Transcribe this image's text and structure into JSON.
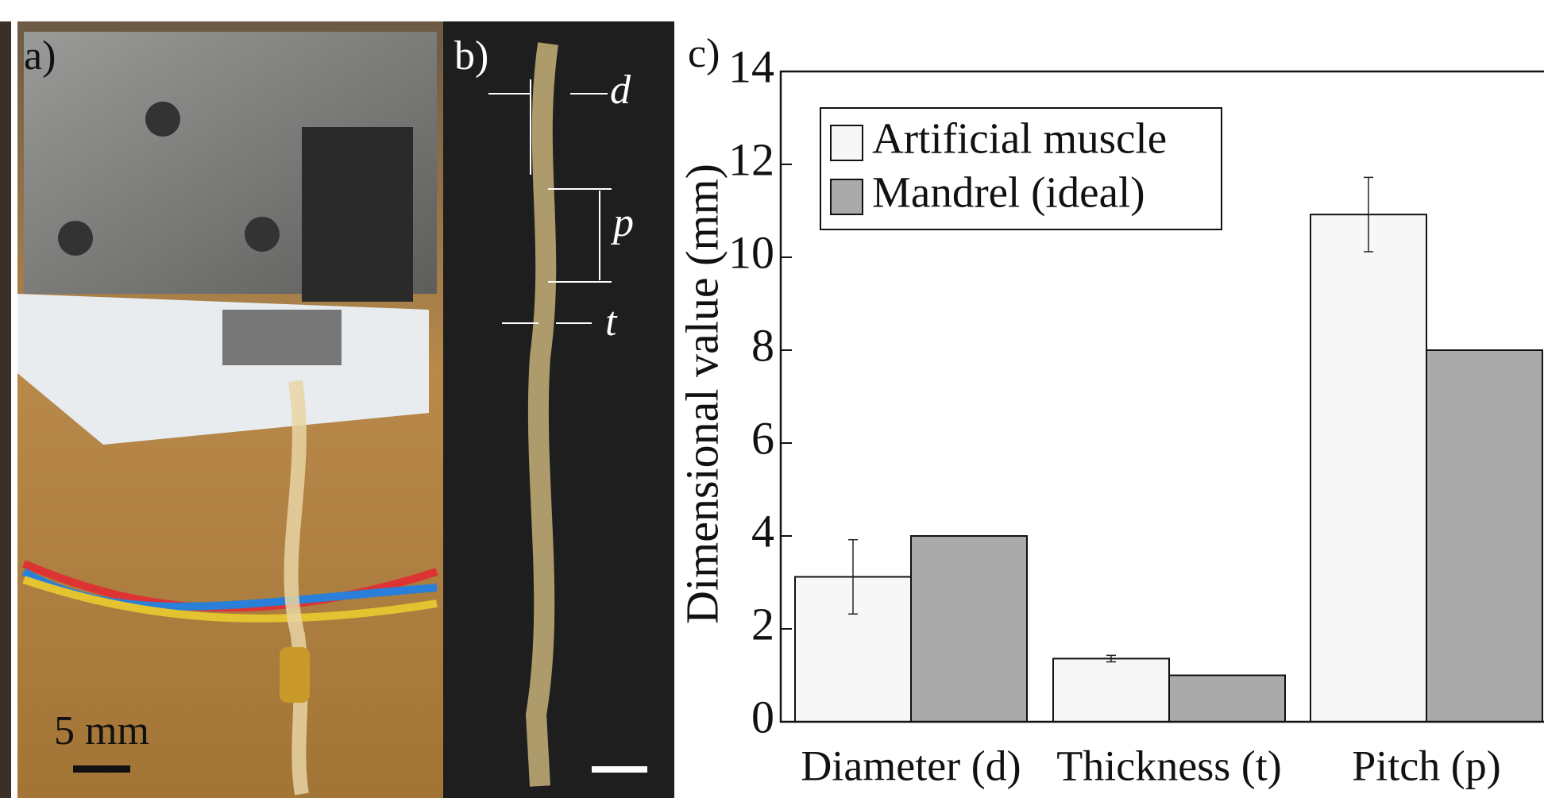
{
  "panels": {
    "a": {
      "label": "a)",
      "scale_bar": "5 mm"
    },
    "b": {
      "label": "b)",
      "annotations": [
        "d",
        "p",
        "t"
      ]
    }
  },
  "chart_data": {
    "type": "bar",
    "label": "c)",
    "y_label": "Dimensional value (mm)",
    "categories": [
      "Diameter (d)",
      "Thickness (t)",
      "Pitch (p)"
    ],
    "series": [
      {
        "name": "Artificial muscle",
        "color": "#f7f7f7",
        "values": [
          3.12,
          1.36,
          10.92
        ],
        "errors": [
          0.8,
          0.07,
          0.8
        ]
      },
      {
        "name": "Mandrel (ideal)",
        "color": "#aaaaaa",
        "values": [
          4,
          1,
          8
        ]
      }
    ],
    "ylim": [
      0,
      14
    ],
    "yticks": [
      0,
      2,
      4,
      6,
      8,
      10,
      12,
      14
    ],
    "legend": "upper left"
  }
}
